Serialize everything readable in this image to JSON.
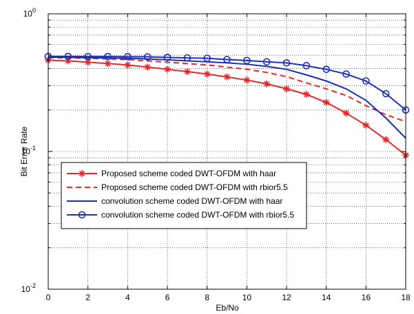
{
  "chart_data": {
    "type": "line",
    "title": "",
    "xlabel": "Eb/No",
    "ylabel": "Bit Error Rate",
    "xlim": [
      0,
      18
    ],
    "ylim": [
      0.01,
      1
    ],
    "yscale": "log",
    "grid": true,
    "legend_position": "lower-left",
    "x_ticks": [
      "0",
      "2",
      "4",
      "6",
      "8",
      "10",
      "12",
      "14",
      "16",
      "18"
    ],
    "y_ticks": [
      {
        "base": "10",
        "exp": "-2",
        "value": 0.01
      },
      {
        "base": "10",
        "exp": "-1",
        "value": 0.1
      },
      {
        "base": "10",
        "exp": "0",
        "value": 1
      }
    ],
    "x": [
      0,
      1,
      2,
      3,
      4,
      5,
      6,
      7,
      8,
      9,
      10,
      11,
      12,
      13,
      14,
      15,
      16,
      17,
      18
    ],
    "series": [
      {
        "name": "Proposed scheme coded DWT-OFDM with haar",
        "color": "#e8262a",
        "style": "solid",
        "marker": "star",
        "values": [
          0.46,
          0.455,
          0.445,
          0.435,
          0.425,
          0.41,
          0.395,
          0.38,
          0.365,
          0.348,
          0.33,
          0.31,
          0.285,
          0.26,
          0.227,
          0.19,
          0.155,
          0.122,
          0.094
        ]
      },
      {
        "name": "Proposed scheme coded DWT-OFDM with rbior5.5",
        "color": "#e8262a",
        "style": "dashed",
        "marker": "none",
        "values": [
          0.48,
          0.478,
          0.475,
          0.47,
          0.465,
          0.455,
          0.445,
          0.435,
          0.425,
          0.41,
          0.395,
          0.375,
          0.35,
          0.315,
          0.285,
          0.255,
          0.215,
          0.185,
          0.165
        ]
      },
      {
        "name": "convolution scheme coded DWT-OFDM with haar",
        "color": "#1a2fb8",
        "style": "solid",
        "marker": "none",
        "values": [
          0.485,
          0.482,
          0.48,
          0.478,
          0.475,
          0.47,
          0.463,
          0.455,
          0.448,
          0.44,
          0.43,
          0.415,
          0.395,
          0.36,
          0.325,
          0.285,
          0.235,
          0.175,
          0.125
        ]
      },
      {
        "name": "convolution scheme coded DWT-OFDM with rbior5.5",
        "color": "#1a2fb8",
        "style": "solid",
        "marker": "circle",
        "values": [
          0.49,
          0.49,
          0.489,
          0.489,
          0.488,
          0.487,
          0.482,
          0.478,
          0.475,
          0.465,
          0.458,
          0.448,
          0.44,
          0.42,
          0.395,
          0.365,
          0.325,
          0.263,
          0.2
        ]
      }
    ]
  }
}
